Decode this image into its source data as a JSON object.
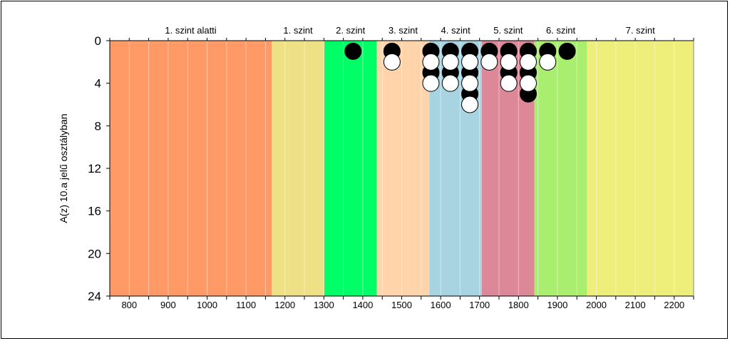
{
  "chart_data": {
    "type": "scatter",
    "title": "",
    "xlabel": "",
    "ylabel": "A(z) 10.a jelű osztályban",
    "xlim": [
      750,
      2250
    ],
    "ylim": [
      24,
      0
    ],
    "x_ticks": [
      800,
      900,
      1000,
      1100,
      1200,
      1300,
      1400,
      1500,
      1600,
      1700,
      1800,
      1900,
      2000,
      2100,
      2200
    ],
    "y_ticks": [
      0,
      4,
      8,
      12,
      16,
      20,
      24
    ],
    "grid": "vertical",
    "levels": [
      {
        "label": "1. szint alatti",
        "from": 750,
        "to": 1166,
        "color": "#FF9966"
      },
      {
        "label": "1. szint",
        "from": 1166,
        "to": 1301,
        "color": "#EEE085"
      },
      {
        "label": "2. szint",
        "from": 1301,
        "to": 1436,
        "color": "#00FF66"
      },
      {
        "label": "3. szint",
        "from": 1436,
        "to": 1571,
        "color": "#FFD4AA"
      },
      {
        "label": "4. szint",
        "from": 1571,
        "to": 1706,
        "color": "#A8D4E2"
      },
      {
        "label": "5. szint",
        "from": 1706,
        "to": 1841,
        "color": "#DD8899"
      },
      {
        "label": "6. szint",
        "from": 1841,
        "to": 1976,
        "color": "#AAEE70"
      },
      {
        "label": "7. szint",
        "from": 1976,
        "to": 2250,
        "color": "#EEEE7A"
      }
    ],
    "series": [
      {
        "color": "#000000",
        "points": [
          {
            "x": 1375,
            "y": 1
          },
          {
            "x": 1475,
            "y": 1
          },
          {
            "x": 1575,
            "y": 1
          },
          {
            "x": 1575,
            "y": 3
          },
          {
            "x": 1625,
            "y": 1
          },
          {
            "x": 1625,
            "y": 3
          },
          {
            "x": 1675,
            "y": 1
          },
          {
            "x": 1675,
            "y": 3
          },
          {
            "x": 1675,
            "y": 5
          },
          {
            "x": 1725,
            "y": 1
          },
          {
            "x": 1775,
            "y": 1
          },
          {
            "x": 1775,
            "y": 3
          },
          {
            "x": 1825,
            "y": 1
          },
          {
            "x": 1825,
            "y": 3
          },
          {
            "x": 1825,
            "y": 5
          },
          {
            "x": 1875,
            "y": 1
          },
          {
            "x": 1925,
            "y": 1
          }
        ]
      },
      {
        "color": "#FFFFFF",
        "points": [
          {
            "x": 1475,
            "y": 2
          },
          {
            "x": 1575,
            "y": 2
          },
          {
            "x": 1575,
            "y": 4
          },
          {
            "x": 1625,
            "y": 2
          },
          {
            "x": 1625,
            "y": 4
          },
          {
            "x": 1675,
            "y": 2
          },
          {
            "x": 1675,
            "y": 4
          },
          {
            "x": 1675,
            "y": 6
          },
          {
            "x": 1725,
            "y": 2
          },
          {
            "x": 1775,
            "y": 2
          },
          {
            "x": 1775,
            "y": 4
          },
          {
            "x": 1825,
            "y": 2
          },
          {
            "x": 1825,
            "y": 4
          },
          {
            "x": 1875,
            "y": 2
          }
        ]
      }
    ]
  }
}
